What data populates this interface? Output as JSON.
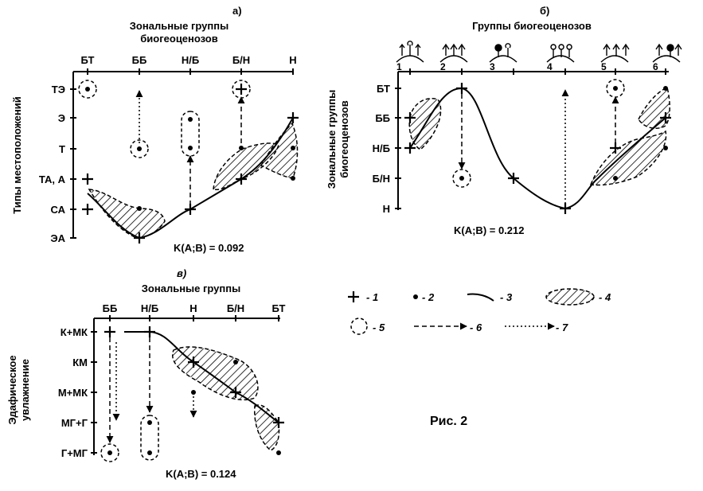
{
  "figure_label": "Рис. 2",
  "panel_a": {
    "letter": "а)",
    "title_line1": "Зональные группы",
    "title_line2": "биогеоценозов",
    "ylabel": "Типы местоположений",
    "x_categories": [
      "БТ",
      "ББ",
      "Н/Б",
      "Б/Н",
      "Н"
    ],
    "y_categories": [
      "ТЭ",
      "Э",
      "Т",
      "ТА, А",
      "СА",
      "ЭА"
    ],
    "k_value": "K(A;B) = 0.092"
  },
  "panel_b": {
    "letter": "б)",
    "title": "Группы биогеоценозов",
    "ylabel_line1": "Зональные группы",
    "ylabel_line2": "биогеоценозов",
    "x_numbers": [
      "1",
      "2",
      "3",
      "4",
      "5",
      "6"
    ],
    "y_categories": [
      "БТ",
      "ББ",
      "Н/Б",
      "Б/Н",
      "Н"
    ],
    "k_value": "K(A;B) = 0.212"
  },
  "panel_c": {
    "letter": "в)",
    "title": "Зональные группы",
    "ylabel_line1": "Эдафическое",
    "ylabel_line2": "увлажнение",
    "x_categories": [
      "ББ",
      "Н/Б",
      "Н",
      "Б/Н",
      "БТ"
    ],
    "y_categories": [
      "К+МК",
      "КМ",
      "М+МК",
      "МГ+Г",
      "Г+МГ"
    ],
    "k_value": "K(A;B) = 0.124"
  },
  "legend": [
    {
      "symbol": "plus",
      "label": "- 1"
    },
    {
      "symbol": "dot",
      "label": "- 2"
    },
    {
      "symbol": "line",
      "label": "- 3"
    },
    {
      "symbol": "hatched-ellipse",
      "label": "- 4"
    },
    {
      "symbol": "dashed-circle",
      "label": "- 5"
    },
    {
      "symbol": "dashed-arrow",
      "label": "- 6"
    },
    {
      "symbol": "dotted-arrow",
      "label": "- 7"
    }
  ]
}
